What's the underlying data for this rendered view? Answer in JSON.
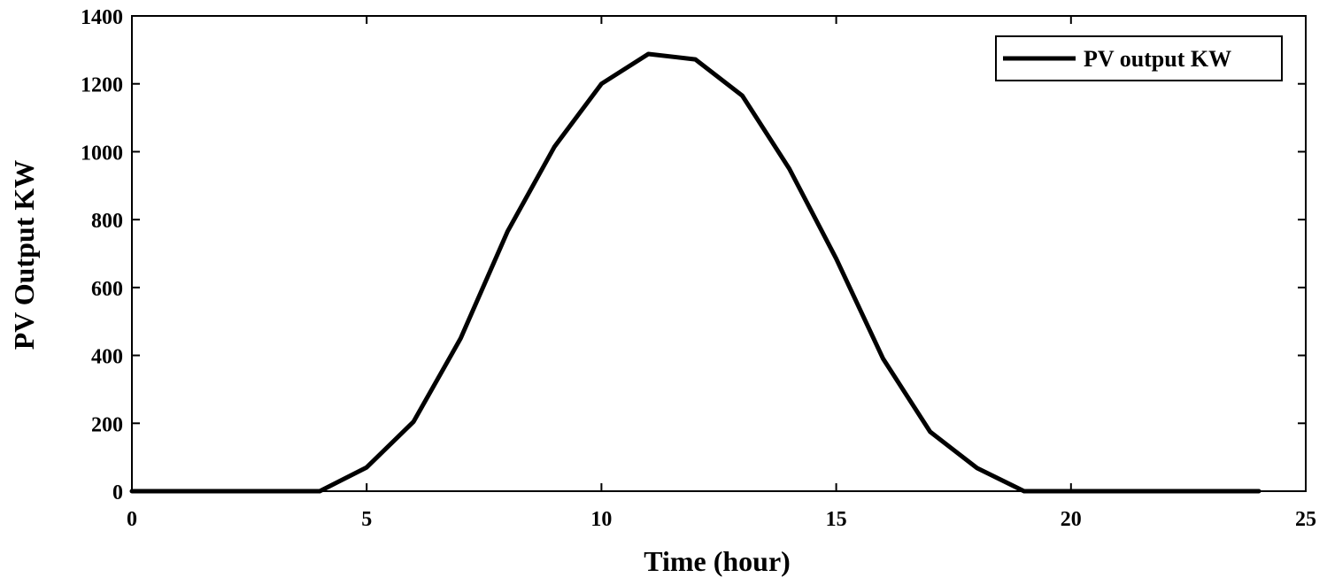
{
  "chart_data": {
    "type": "line",
    "title": "",
    "xlabel": "Time (hour)",
    "ylabel": "PV Output KW",
    "xlim": [
      0,
      25
    ],
    "ylim": [
      0,
      1400
    ],
    "xticks": [
      0,
      5,
      10,
      15,
      20,
      25
    ],
    "yticks": [
      0,
      200,
      400,
      600,
      800,
      1000,
      1200,
      1400
    ],
    "grid": false,
    "legend_position": "top-right",
    "series": [
      {
        "name": "PV output KW",
        "color": "#000000",
        "x": [
          0,
          1,
          2,
          3,
          4,
          5,
          6,
          7,
          8,
          9,
          10,
          11,
          12,
          13,
          14,
          15,
          16,
          17,
          18,
          19,
          20,
          21,
          22,
          23,
          24
        ],
        "y": [
          0,
          0,
          0,
          0,
          0,
          70,
          205,
          450,
          765,
          1015,
          1200,
          1288,
          1272,
          1165,
          950,
          685,
          390,
          175,
          68,
          0,
          0,
          0,
          0,
          0,
          0
        ]
      }
    ]
  }
}
